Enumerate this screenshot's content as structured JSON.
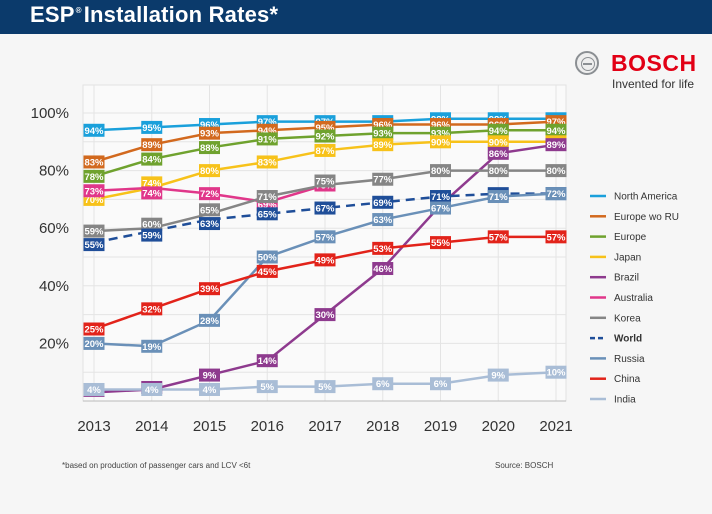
{
  "header": {
    "title_main": "ESP",
    "title_reg": "®",
    "title_rest": "Installation Rates*"
  },
  "logo": {
    "brand": "BOSCH",
    "tagline": "Invented for life"
  },
  "footnote": "*based on production of passenger cars and LCV <6t",
  "source": "Source: BOSCH",
  "chart_data": {
    "type": "line",
    "title": "ESP® Installation Rates*",
    "xlabel": "",
    "ylabel": "",
    "x": [
      2013,
      2014,
      2015,
      2016,
      2017,
      2018,
      2019,
      2020,
      2021
    ],
    "x_tick_labels": [
      "2013",
      "2014",
      "2015",
      "2016",
      "2017",
      "2018",
      "2019",
      "2020",
      "2021"
    ],
    "y_ticks": [
      20,
      40,
      60,
      80,
      100
    ],
    "y_tick_labels": [
      "20%",
      "40%",
      "60%",
      "80%",
      "100%"
    ],
    "ylim": [
      0,
      110
    ],
    "grid": true,
    "legend_position": "right",
    "series": [
      {
        "name": "North America",
        "color": "#1aa0db",
        "dashed": false,
        "bold": false,
        "values": [
          94,
          95,
          96,
          97,
          97,
          97,
          98,
          98,
          98
        ]
      },
      {
        "name": "Europe wo RU",
        "color": "#d2691e",
        "dashed": false,
        "bold": false,
        "values": [
          83,
          89,
          93,
          94,
          95,
          96,
          96,
          96,
          97
        ]
      },
      {
        "name": "Europe",
        "color": "#6fa22e",
        "dashed": false,
        "bold": false,
        "values": [
          78,
          84,
          88,
          91,
          92,
          93,
          93,
          94,
          94
        ]
      },
      {
        "name": "Japan",
        "color": "#f7c21a",
        "dashed": false,
        "bold": false,
        "values": [
          70,
          74,
          80,
          83,
          87,
          89,
          90,
          90,
          90
        ]
      },
      {
        "name": "Brazil",
        "color": "#8e3a8e",
        "dashed": false,
        "bold": false,
        "values": [
          3,
          4,
          9,
          14,
          30,
          46,
          68,
          86,
          89
        ]
      },
      {
        "name": "Australia",
        "color": "#e0378a",
        "dashed": false,
        "bold": false,
        "values": [
          73,
          74,
          72,
          69,
          75,
          null,
          null,
          null,
          null
        ]
      },
      {
        "name": "Korea",
        "color": "#858585",
        "dashed": false,
        "bold": false,
        "values": [
          59,
          60,
          65,
          71,
          75,
          77,
          80,
          80,
          80
        ]
      },
      {
        "name": "World",
        "color": "#1f4e99",
        "dashed": true,
        "bold": true,
        "values": [
          55,
          59,
          63,
          65,
          67,
          69,
          71,
          72,
          72
        ]
      },
      {
        "name": "Russia",
        "color": "#6a90b8",
        "dashed": false,
        "bold": false,
        "values": [
          20,
          19,
          28,
          50,
          57,
          63,
          67,
          71,
          72
        ]
      },
      {
        "name": "China",
        "color": "#e2231a",
        "dashed": false,
        "bold": false,
        "values": [
          25,
          32,
          39,
          45,
          49,
          53,
          55,
          57,
          57
        ]
      },
      {
        "name": "India",
        "color": "#a9bdd6",
        "dashed": false,
        "bold": false,
        "values": [
          4,
          4,
          4,
          5,
          5,
          6,
          6,
          9,
          10
        ]
      }
    ]
  }
}
